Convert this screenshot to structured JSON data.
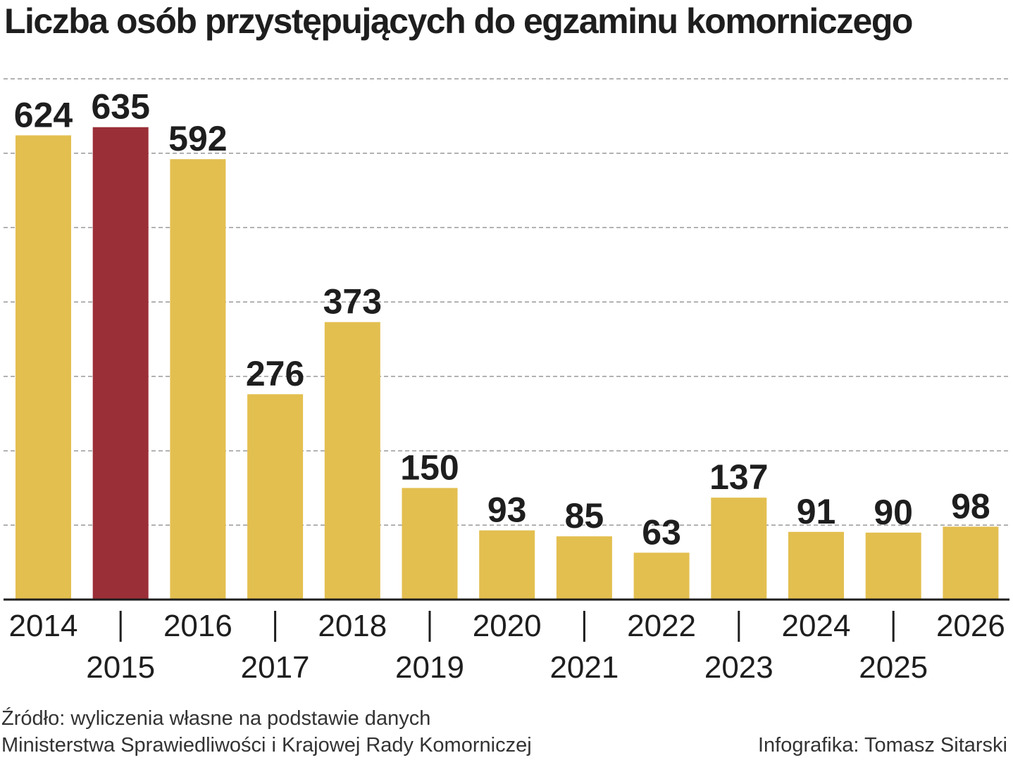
{
  "title": "Liczba osób przystępujących do egzaminu komorniczego",
  "source_line1": "Źródło: wyliczenia własne na podstawie danych",
  "source_line2": "Ministerstwa Sprawiedliwości i Krajowej Rady Komorniczej",
  "credit": "Infografika: Tomasz Sitarski",
  "colors": {
    "bar": "#e3bf50",
    "highlight": "#9b2f37",
    "grid": "#999999",
    "axis": "#1e1e1e"
  },
  "chart_data": {
    "type": "bar",
    "categories": [
      "2014",
      "2015",
      "2016",
      "2017",
      "2018",
      "2019",
      "2020",
      "2021",
      "2022",
      "2023",
      "2024",
      "2025",
      "2026"
    ],
    "values": [
      624,
      635,
      592,
      276,
      373,
      150,
      93,
      85,
      63,
      137,
      91,
      90,
      98
    ],
    "highlight_index": 1,
    "title": "Liczba osób przystępujących do egzaminu komorniczego",
    "xlabel": "",
    "ylabel": "",
    "ylim": [
      0,
      700
    ],
    "grid": true,
    "legend": "none"
  }
}
